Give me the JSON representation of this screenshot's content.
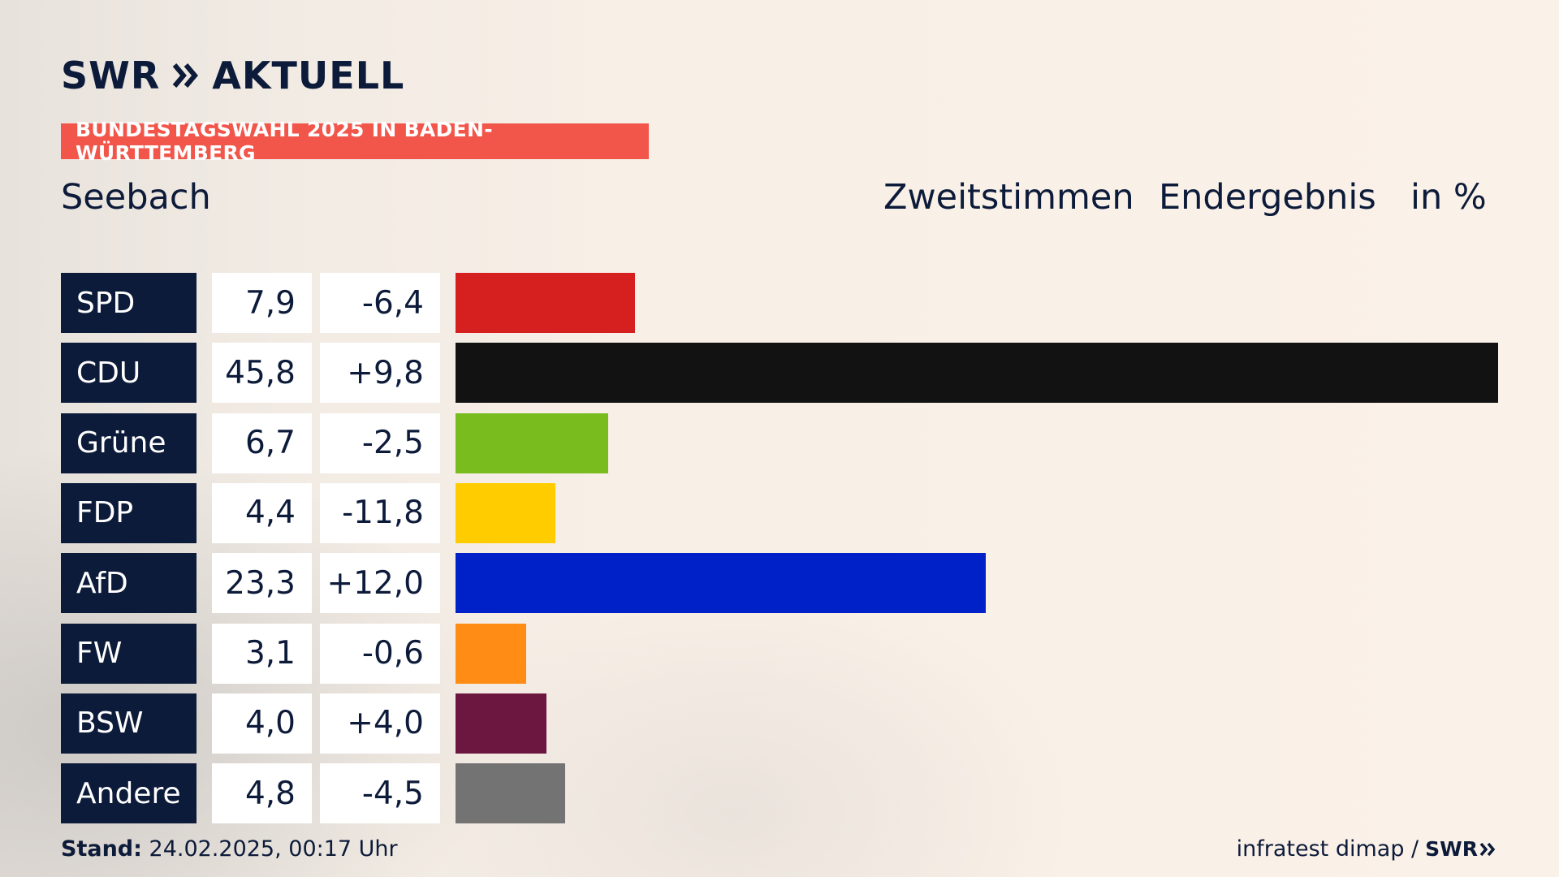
{
  "brand": {
    "logo_text": "SWR",
    "logo_text2": "AKTUELL"
  },
  "banner": "BUNDESTAGSWAHL 2025 IN BADEN-WÜRTTEMBERG",
  "place": "Seebach",
  "header": {
    "col1": "Zweitstimmen",
    "col2": "Endergebnis",
    "col3": "in %"
  },
  "footer": {
    "stand_label": "Stand:",
    "stand_value": "24.02.2025, 00:17 Uhr",
    "source": "infratest dimap /",
    "source_logo": "SWR"
  },
  "colors": {
    "navy": "#0d1b3a",
    "banner": "#f2554a"
  },
  "chart_data": {
    "type": "bar",
    "orientation": "horizontal",
    "xlim": [
      0,
      45.8
    ],
    "categories": [
      "SPD",
      "CDU",
      "Grüne",
      "FDP",
      "AfD",
      "FW",
      "BSW",
      "Andere"
    ],
    "values": [
      7.9,
      45.8,
      6.7,
      4.4,
      23.3,
      3.1,
      4.0,
      4.8
    ],
    "value_labels": [
      "7,9",
      "45,8",
      "6,7",
      "4,4",
      "23,3",
      "3,1",
      "4,0",
      "4,8"
    ],
    "change_labels": [
      "-6,4",
      "+9,8",
      "-2,5",
      "-11,8",
      "+12,0",
      "-0,6",
      "+4,0",
      "-4,5"
    ],
    "changes": [
      -6.4,
      9.8,
      -2.5,
      -11.8,
      12.0,
      -0.6,
      4.0,
      -4.5
    ],
    "bar_colors": [
      "#d62020",
      "#121212",
      "#78bc1e",
      "#ffcc00",
      "#0021c8",
      "#ff8c15",
      "#6b1740",
      "#737373"
    ]
  }
}
